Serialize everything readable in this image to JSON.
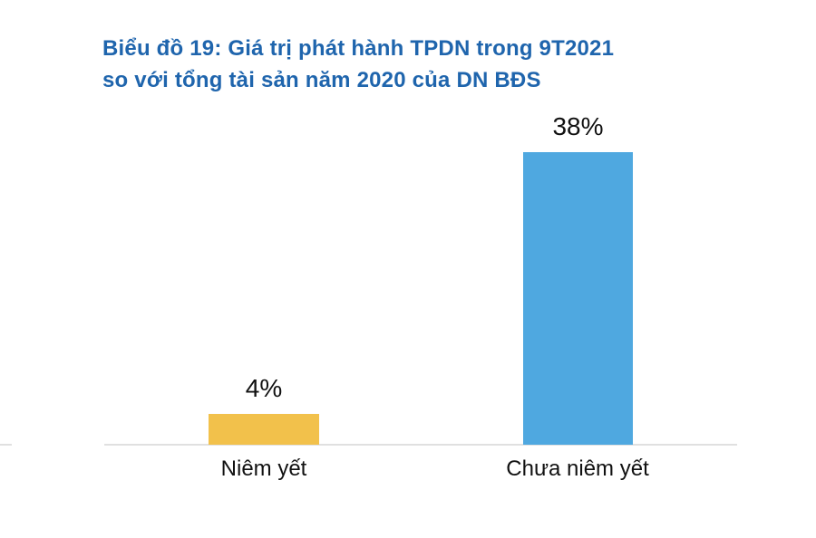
{
  "title": {
    "line1": "Biểu đồ 19: Giá trị phát hành TPDN trong 9T2021",
    "line2": "so với tổng tài sản năm 2020 của DN BĐS"
  },
  "chart_data": {
    "type": "bar",
    "title": "Biểu đồ 19: Giá trị phát hành TPDN trong 9T2021 so với tổng tài sản năm 2020 của DN BĐS",
    "categories": [
      "Niêm yết",
      "Chưa niêm yết"
    ],
    "values": [
      4,
      38
    ],
    "value_labels": [
      "4%",
      "38%"
    ],
    "series_unit": "%",
    "xlabel": "",
    "ylabel": "",
    "ylim": [
      0,
      40
    ],
    "grid": false,
    "legend": "none",
    "bar_colors": [
      "#F2C14B",
      "#4FA8E0"
    ],
    "title_color": "#1F65AD",
    "axis_line_color": "#E0E0E0"
  }
}
